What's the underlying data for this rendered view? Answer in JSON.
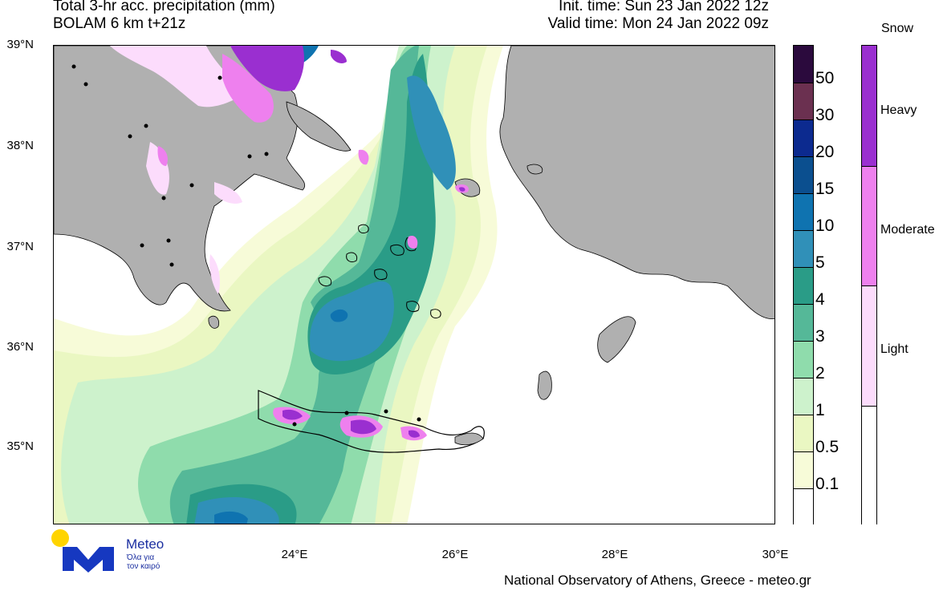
{
  "header": {
    "title_line1": "Total 3-hr acc. precipitation (mm)",
    "title_line2": "BOLAM 6 km t+21z",
    "init_time": "Init. time: Sun 23 Jan 2022 12z",
    "valid_time": "Valid time: Mon 24 Jan 2022 09z"
  },
  "map": {
    "lat_labels": [
      "39°N",
      "38°N",
      "37°N",
      "36°N",
      "35°N"
    ],
    "lon_labels": [
      "24°E",
      "26°E",
      "28°E",
      "30°E"
    ],
    "colors": {
      "land": "#b0b0b0",
      "sea": "#ffffff",
      "coast": "#000000"
    }
  },
  "precip_legend": {
    "levels": [
      "50",
      "30",
      "20",
      "15",
      "10",
      "5",
      "4",
      "3",
      "2",
      "1",
      "0.5",
      "0.1"
    ],
    "colors": [
      "#2b0a3d",
      "#6b3050",
      "#0c2a8f",
      "#0b4f8f",
      "#0f73b0",
      "#3090b8",
      "#2a9c87",
      "#55b898",
      "#8fdcac",
      "#cdf2cc",
      "#eaf7c2",
      "#f7fbd8",
      "#ffffff"
    ]
  },
  "snow_legend": {
    "title": "Snow",
    "labels": [
      "Heavy",
      "Moderate",
      "Light"
    ],
    "colors": [
      "#9a2fd0",
      "#ee80ee",
      "#fcdcfc",
      "#ffffff"
    ]
  },
  "logo": {
    "name": "Meteo",
    "tagline_line1": "Όλα για",
    "tagline_line2": "τον καιρό",
    "colors": {
      "sun": "#ffd400",
      "m": "#1638c0"
    }
  },
  "footer": {
    "credit": "National Observatory of Athens, Greece - meteo.gr"
  }
}
